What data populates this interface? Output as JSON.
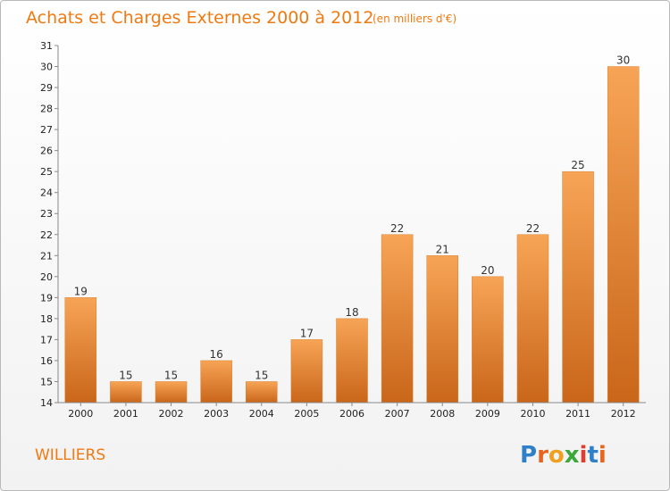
{
  "chart_data": {
    "type": "bar",
    "title": "Achats et Charges Externes 2000 à 2012",
    "subtitle": "(en milliers d'€)",
    "categories": [
      "2000",
      "2001",
      "2002",
      "2003",
      "2004",
      "2005",
      "2006",
      "2007",
      "2008",
      "2009",
      "2010",
      "2011",
      "2012"
    ],
    "values": [
      19,
      15,
      15,
      16,
      15,
      17,
      18,
      22,
      21,
      20,
      22,
      25,
      30
    ],
    "xlabel": "",
    "ylabel": "",
    "ylim": [
      14,
      31
    ],
    "yticks": [
      14,
      15,
      16,
      17,
      18,
      19,
      20,
      21,
      22,
      23,
      24,
      25,
      26,
      27,
      28,
      29,
      30,
      31
    ],
    "grid": false,
    "bar_color_top": "#f7a456",
    "bar_color_bottom": "#c9661a",
    "title_color": "#f07a12"
  },
  "footer": {
    "commune": "WILLIERS",
    "logo": "Proxiti",
    "logo_colors": [
      "#2f80c8",
      "#e8641e",
      "#f0a020",
      "#3aa83a",
      "#e23c2c",
      "#2f80c8",
      "#e8641e"
    ]
  }
}
